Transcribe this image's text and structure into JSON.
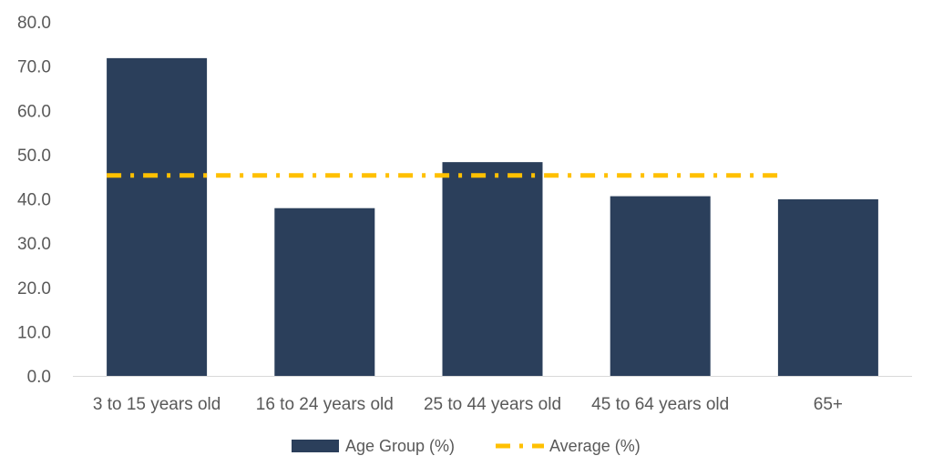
{
  "chart_data": {
    "type": "bar",
    "categories": [
      "3 to 15 years old",
      "16 to 24 years old",
      "25 to 44 years old",
      "45 to 64 years old",
      "65+"
    ],
    "series": [
      {
        "name": "Age Group (%)",
        "values": [
          71.8,
          37.9,
          48.3,
          40.6,
          39.9
        ]
      }
    ],
    "average": {
      "name": "Average (%)",
      "value": 45.3
    },
    "ylim": [
      0,
      80
    ],
    "yticks": [
      "0.0",
      "10.0",
      "20.0",
      "30.0",
      "40.0",
      "50.0",
      "60.0",
      "70.0",
      "80.0"
    ],
    "ytick_values": [
      0,
      10,
      20,
      30,
      40,
      50,
      60,
      70,
      80
    ],
    "grid": false,
    "legend_position": "bottom",
    "colors": {
      "bar": "#2b3f5b",
      "average": "#ffc000",
      "axis": "#d9d9d9",
      "text": "#595959"
    }
  }
}
